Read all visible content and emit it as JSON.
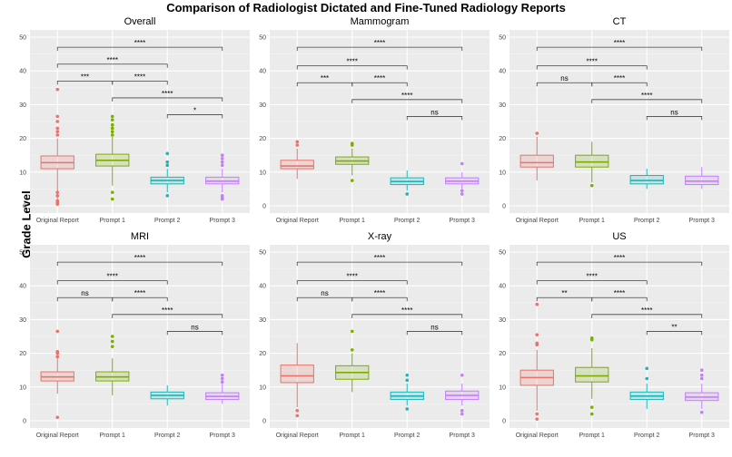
{
  "title": "Comparison of Radiologist Dictated and Fine-Tuned Radiology Reports",
  "ylabel": "Grade Level",
  "colors": {
    "Original Report": "#E8736C",
    "Prompt 1": "#7CAE00",
    "Prompt 2": "#1FB5B8",
    "Prompt 3": "#C77CFF"
  },
  "chart_data": [
    {
      "type": "box",
      "title": "Overall",
      "categories": [
        "Original Report",
        "Prompt 1",
        "Prompt 2",
        "Prompt 3"
      ],
      "ylim": [
        0,
        50
      ],
      "yticks": [
        "0",
        "10",
        "20",
        "30",
        "40",
        "50"
      ],
      "boxes": [
        {
          "category": "Original Report",
          "whisker_low": 2,
          "q1": 11,
          "median": 12.8,
          "q3": 14.8,
          "whisker_high": 20,
          "outliers": [
            0.5,
            1,
            1.5,
            3,
            4,
            21,
            22,
            23,
            25,
            26.5,
            34.5
          ]
        },
        {
          "category": "Prompt 1",
          "whisker_low": 6,
          "q1": 11.8,
          "median": 13.5,
          "q3": 15.3,
          "whisker_high": 20.5,
          "outliers": [
            2,
            4,
            21,
            22,
            23,
            24,
            25.5,
            26.5
          ]
        },
        {
          "category": "Prompt 2",
          "whisker_low": 4,
          "q1": 6.5,
          "median": 7.5,
          "q3": 8.5,
          "whisker_high": 11,
          "outliers": [
            3,
            12,
            13,
            15.5
          ]
        },
        {
          "category": "Prompt 3",
          "whisker_low": 4,
          "q1": 6.5,
          "median": 7.3,
          "q3": 8.5,
          "whisker_high": 11,
          "outliers": [
            2,
            2.5,
            3,
            12,
            13,
            14,
            15
          ]
        }
      ],
      "comparisons": [
        {
          "from": "Original Report",
          "to": "Prompt 3",
          "y": 47,
          "label": "****"
        },
        {
          "from": "Original Report",
          "to": "Prompt 2",
          "y": 42,
          "label": "****"
        },
        {
          "from": "Original Report",
          "to": "Prompt 1",
          "y": 37,
          "label": "***"
        },
        {
          "from": "Prompt 1",
          "to": "Prompt 2",
          "y": 37,
          "label": "****"
        },
        {
          "from": "Prompt 1",
          "to": "Prompt 3",
          "y": 32,
          "label": "****"
        },
        {
          "from": "Prompt 2",
          "to": "Prompt 3",
          "y": 27,
          "label": "*"
        }
      ]
    },
    {
      "type": "box",
      "title": "Mammogram",
      "categories": [
        "Original Report",
        "Prompt 1",
        "Prompt 2",
        "Prompt 3"
      ],
      "ylim": [
        0,
        50
      ],
      "yticks": [
        "0",
        "10",
        "20",
        "30",
        "40",
        "50"
      ],
      "boxes": [
        {
          "category": "Original Report",
          "whisker_low": 8,
          "q1": 11,
          "median": 11.8,
          "q3": 13.5,
          "whisker_high": 17,
          "outliers": [
            18,
            19
          ]
        },
        {
          "category": "Prompt 1",
          "whisker_low": 9,
          "q1": 12.3,
          "median": 13.3,
          "q3": 14.5,
          "whisker_high": 17,
          "outliers": [
            7.5,
            18,
            18.5
          ]
        },
        {
          "category": "Prompt 2",
          "whisker_low": 4.5,
          "q1": 6.3,
          "median": 7.2,
          "q3": 8.3,
          "whisker_high": 10.5,
          "outliers": [
            3.5
          ]
        },
        {
          "category": "Prompt 3",
          "whisker_low": 5,
          "q1": 6.5,
          "median": 7.3,
          "q3": 8.3,
          "whisker_high": 10,
          "outliers": [
            3.5,
            4.5,
            12.5
          ]
        }
      ],
      "comparisons": [
        {
          "from": "Original Report",
          "to": "Prompt 3",
          "y": 47,
          "label": "****"
        },
        {
          "from": "Original Report",
          "to": "Prompt 2",
          "y": 41.5,
          "label": "****"
        },
        {
          "from": "Original Report",
          "to": "Prompt 1",
          "y": 36.5,
          "label": "***"
        },
        {
          "from": "Prompt 1",
          "to": "Prompt 2",
          "y": 36.5,
          "label": "****"
        },
        {
          "from": "Prompt 1",
          "to": "Prompt 3",
          "y": 31.5,
          "label": "****"
        },
        {
          "from": "Prompt 2",
          "to": "Prompt 3",
          "y": 26.5,
          "label": "ns"
        }
      ]
    },
    {
      "type": "box",
      "title": "CT",
      "categories": [
        "Original Report",
        "Prompt 1",
        "Prompt 2",
        "Prompt 3"
      ],
      "ylim": [
        0,
        50
      ],
      "yticks": [
        "0",
        "10",
        "20",
        "30",
        "40",
        "50"
      ],
      "boxes": [
        {
          "category": "Original Report",
          "whisker_low": 7.5,
          "q1": 11.5,
          "median": 12.8,
          "q3": 15,
          "whisker_high": 20.5,
          "outliers": [
            21.5
          ]
        },
        {
          "category": "Prompt 1",
          "whisker_low": 7,
          "q1": 11.5,
          "median": 13,
          "q3": 15,
          "whisker_high": 19,
          "outliers": [
            6
          ]
        },
        {
          "category": "Prompt 2",
          "whisker_low": 5,
          "q1": 6.5,
          "median": 7.5,
          "q3": 9,
          "whisker_high": 11,
          "outliers": []
        },
        {
          "category": "Prompt 3",
          "whisker_low": 5,
          "q1": 6.3,
          "median": 7.3,
          "q3": 8.8,
          "whisker_high": 11.5,
          "outliers": []
        }
      ],
      "comparisons": [
        {
          "from": "Original Report",
          "to": "Prompt 3",
          "y": 47,
          "label": "****"
        },
        {
          "from": "Original Report",
          "to": "Prompt 2",
          "y": 41.5,
          "label": "****"
        },
        {
          "from": "Original Report",
          "to": "Prompt 1",
          "y": 36.5,
          "label": "ns"
        },
        {
          "from": "Prompt 1",
          "to": "Prompt 2",
          "y": 36.5,
          "label": "****"
        },
        {
          "from": "Prompt 1",
          "to": "Prompt 3",
          "y": 31.5,
          "label": "****"
        },
        {
          "from": "Prompt 2",
          "to": "Prompt 3",
          "y": 26.5,
          "label": "ns"
        }
      ]
    },
    {
      "type": "box",
      "title": "MRI",
      "categories": [
        "Original Report",
        "Prompt 1",
        "Prompt 2",
        "Prompt 3"
      ],
      "ylim": [
        0,
        50
      ],
      "yticks": [
        "0",
        "10",
        "20",
        "30",
        "40",
        "50"
      ],
      "boxes": [
        {
          "category": "Original Report",
          "whisker_low": 8,
          "q1": 11.8,
          "median": 13,
          "q3": 14.5,
          "whisker_high": 18.5,
          "outliers": [
            1,
            19,
            20,
            20.5,
            26.5
          ]
        },
        {
          "category": "Prompt 1",
          "whisker_low": 7.5,
          "q1": 11.8,
          "median": 13,
          "q3": 14.5,
          "whisker_high": 18.5,
          "outliers": [
            22,
            23.5,
            25
          ]
        },
        {
          "category": "Prompt 2",
          "whisker_low": 4.5,
          "q1": 6.5,
          "median": 7.5,
          "q3": 8.5,
          "whisker_high": 10.5,
          "outliers": []
        },
        {
          "category": "Prompt 3",
          "whisker_low": 5,
          "q1": 6.3,
          "median": 7.2,
          "q3": 8.3,
          "whisker_high": 11,
          "outliers": [
            11.5,
            12.5,
            13.5
          ]
        }
      ],
      "comparisons": [
        {
          "from": "Original Report",
          "to": "Prompt 3",
          "y": 47,
          "label": "****"
        },
        {
          "from": "Original Report",
          "to": "Prompt 2",
          "y": 41.5,
          "label": "****"
        },
        {
          "from": "Original Report",
          "to": "Prompt 1",
          "y": 36.5,
          "label": "ns"
        },
        {
          "from": "Prompt 1",
          "to": "Prompt 2",
          "y": 36.5,
          "label": "****"
        },
        {
          "from": "Prompt 1",
          "to": "Prompt 3",
          "y": 31.5,
          "label": "****"
        },
        {
          "from": "Prompt 2",
          "to": "Prompt 3",
          "y": 26.5,
          "label": "ns"
        }
      ]
    },
    {
      "type": "box",
      "title": "X-ray",
      "categories": [
        "Original Report",
        "Prompt 1",
        "Prompt 2",
        "Prompt 3"
      ],
      "ylim": [
        0,
        50
      ],
      "yticks": [
        "0",
        "10",
        "20",
        "30",
        "40",
        "50"
      ],
      "boxes": [
        {
          "category": "Original Report",
          "whisker_low": 4,
          "q1": 11.3,
          "median": 13.3,
          "q3": 16.5,
          "whisker_high": 23,
          "outliers": [
            1.5,
            3
          ]
        },
        {
          "category": "Prompt 1",
          "whisker_low": 8.5,
          "q1": 12.3,
          "median": 14.3,
          "q3": 16.3,
          "whisker_high": 20,
          "outliers": [
            21,
            26.5
          ]
        },
        {
          "category": "Prompt 2",
          "whisker_low": 4.5,
          "q1": 6.3,
          "median": 7.3,
          "q3": 8.5,
          "whisker_high": 11,
          "outliers": [
            3.5,
            12,
            13.5
          ]
        },
        {
          "category": "Prompt 3",
          "whisker_low": 4.5,
          "q1": 6.3,
          "median": 7.5,
          "q3": 8.8,
          "whisker_high": 11,
          "outliers": [
            2,
            3,
            13.5
          ]
        }
      ],
      "comparisons": [
        {
          "from": "Original Report",
          "to": "Prompt 3",
          "y": 47,
          "label": "****"
        },
        {
          "from": "Original Report",
          "to": "Prompt 2",
          "y": 41.5,
          "label": "****"
        },
        {
          "from": "Original Report",
          "to": "Prompt 1",
          "y": 36.5,
          "label": "ns"
        },
        {
          "from": "Prompt 1",
          "to": "Prompt 2",
          "y": 36.5,
          "label": "****"
        },
        {
          "from": "Prompt 1",
          "to": "Prompt 3",
          "y": 31.5,
          "label": "****"
        },
        {
          "from": "Prompt 2",
          "to": "Prompt 3",
          "y": 26.5,
          "label": "ns"
        }
      ]
    },
    {
      "type": "box",
      "title": "US",
      "categories": [
        "Original Report",
        "Prompt 1",
        "Prompt 2",
        "Prompt 3"
      ],
      "ylim": [
        0,
        50
      ],
      "yticks": [
        "0",
        "10",
        "20",
        "30",
        "40",
        "50"
      ],
      "boxes": [
        {
          "category": "Original Report",
          "whisker_low": 3,
          "q1": 10.5,
          "median": 12.8,
          "q3": 15,
          "whisker_high": 21,
          "outliers": [
            0.5,
            2,
            22.5,
            23,
            25.5,
            34.5
          ]
        },
        {
          "category": "Prompt 1",
          "whisker_low": 6.5,
          "q1": 11.5,
          "median": 13.3,
          "q3": 15.8,
          "whisker_high": 21.5,
          "outliers": [
            2,
            4,
            24,
            24.5
          ]
        },
        {
          "category": "Prompt 2",
          "whisker_low": 3.5,
          "q1": 6.3,
          "median": 7.3,
          "q3": 8.5,
          "whisker_high": 11,
          "outliers": [
            12.5,
            15.5
          ]
        },
        {
          "category": "Prompt 3",
          "whisker_low": 3.5,
          "q1": 6,
          "median": 7,
          "q3": 8.3,
          "whisker_high": 11,
          "outliers": [
            2.5,
            12.5,
            13.5,
            15
          ]
        }
      ],
      "comparisons": [
        {
          "from": "Original Report",
          "to": "Prompt 3",
          "y": 47,
          "label": "****"
        },
        {
          "from": "Original Report",
          "to": "Prompt 2",
          "y": 41.5,
          "label": "****"
        },
        {
          "from": "Original Report",
          "to": "Prompt 1",
          "y": 36.5,
          "label": "**"
        },
        {
          "from": "Prompt 1",
          "to": "Prompt 2",
          "y": 36.5,
          "label": "****"
        },
        {
          "from": "Prompt 1",
          "to": "Prompt 3",
          "y": 31.5,
          "label": "****"
        },
        {
          "from": "Prompt 2",
          "to": "Prompt 3",
          "y": 26.5,
          "label": "**"
        }
      ]
    }
  ]
}
